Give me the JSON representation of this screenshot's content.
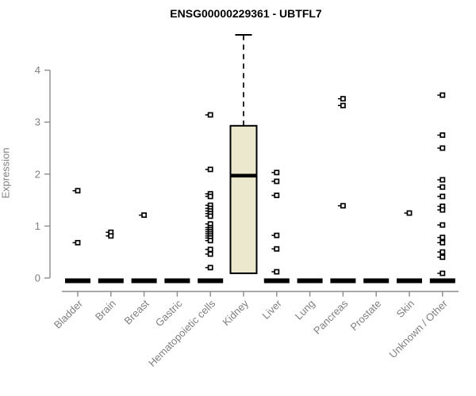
{
  "chart_data": {
    "type": "boxplot",
    "title": "ENSG00000229361 - UBTFL7",
    "ylabel": "Expression",
    "xlabel": "",
    "yticks": [
      0,
      1,
      2,
      3,
      4
    ],
    "ylim": [
      0,
      4.8
    ],
    "grid": false,
    "legend": "none",
    "categories": [
      "Bladder",
      "Brain",
      "Breast",
      "Gastric",
      "Hematopoietic cells",
      "Kidney",
      "Liver",
      "Lung",
      "Pancreas",
      "Prostate",
      "Skin",
      "Unknown / Other"
    ],
    "series": [
      {
        "category": "Bladder",
        "box": {
          "low": 0,
          "q1": 0,
          "median": 0,
          "q3": 0,
          "high": 0
        },
        "outliers": [
          1.68,
          0.68
        ]
      },
      {
        "category": "Brain",
        "box": {
          "low": 0,
          "q1": 0,
          "median": 0,
          "q3": 0,
          "high": 0
        },
        "outliers": [
          0.88,
          0.81
        ]
      },
      {
        "category": "Breast",
        "box": {
          "low": 0,
          "q1": 0,
          "median": 0,
          "q3": 0,
          "high": 0
        },
        "outliers": [
          1.21
        ]
      },
      {
        "category": "Gastric",
        "box": {
          "low": 0,
          "q1": 0,
          "median": 0,
          "q3": 0,
          "high": 0
        },
        "outliers": []
      },
      {
        "category": "Hematopoietic cells",
        "box": {
          "low": 0,
          "q1": 0,
          "median": 0,
          "q3": 0,
          "high": 0
        },
        "outliers": [
          3.14,
          2.09,
          1.62,
          1.57,
          1.4,
          1.34,
          1.29,
          1.24,
          1.19,
          1.04,
          0.97,
          0.93,
          0.89,
          0.85,
          0.81,
          0.77,
          0.72,
          0.55,
          0.46,
          0.2
        ]
      },
      {
        "category": "Kidney",
        "box": {
          "low": 0.05,
          "q1": 0.09,
          "median": 1.97,
          "q3": 2.93,
          "high": 4.68
        },
        "outliers": []
      },
      {
        "category": "Liver",
        "box": {
          "low": 0,
          "q1": 0,
          "median": 0,
          "q3": 0,
          "high": 0
        },
        "outliers": [
          2.03,
          1.86,
          1.59,
          0.82,
          0.56,
          0.12
        ]
      },
      {
        "category": "Lung",
        "box": {
          "low": 0,
          "q1": 0,
          "median": 0,
          "q3": 0,
          "high": 0
        },
        "outliers": []
      },
      {
        "category": "Pancreas",
        "box": {
          "low": 0,
          "q1": 0,
          "median": 0,
          "q3": 0,
          "high": 0
        },
        "outliers": [
          3.45,
          3.32,
          1.39
        ]
      },
      {
        "category": "Prostate",
        "box": {
          "low": 0,
          "q1": 0,
          "median": 0,
          "q3": 0,
          "high": 0
        },
        "outliers": []
      },
      {
        "category": "Skin",
        "box": {
          "low": 0,
          "q1": 0,
          "median": 0,
          "q3": 0,
          "high": 0
        },
        "outliers": [
          1.25
        ]
      },
      {
        "category": "Unknown / Other",
        "box": {
          "low": 0,
          "q1": 0,
          "median": 0,
          "q3": 0,
          "high": 0
        },
        "outliers": [
          3.52,
          2.75,
          2.5,
          1.89,
          1.75,
          1.57,
          1.38,
          1.31,
          1.02,
          0.78,
          0.68,
          0.5,
          0.4,
          0.09
        ]
      }
    ],
    "colors": {
      "box_fill": "#ece8cd",
      "box_border": "#000000",
      "median": "#000000",
      "point": "#000000",
      "axis": "#8b8b8b",
      "tick_label": "#7f7f7f",
      "title": "#000000",
      "background": "#ffffff"
    }
  }
}
